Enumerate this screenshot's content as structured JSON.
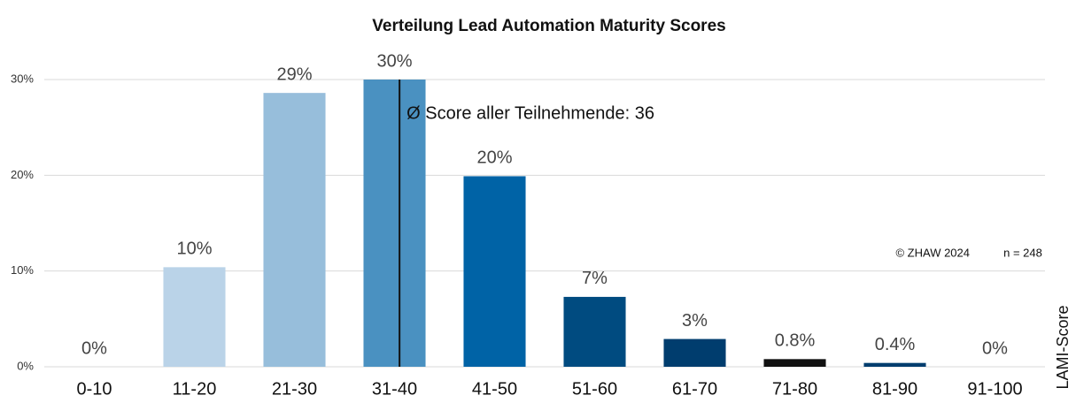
{
  "chart_data": {
    "type": "bar",
    "title": "Verteilung Lead Automation Maturity Scores",
    "categories": [
      "0-10",
      "11-20",
      "21-30",
      "31-40",
      "41-50",
      "51-60",
      "61-70",
      "71-80",
      "81-90",
      "91-100"
    ],
    "values": [
      0,
      10.4,
      28.6,
      30,
      19.9,
      7.3,
      2.9,
      0.8,
      0.4,
      0
    ],
    "value_labels": [
      "0%",
      "10%",
      "29%",
      "30%",
      "20%",
      "7%",
      "3%",
      "0.8%",
      "0.4%",
      "0%"
    ],
    "colors": [
      "#bdd7e7",
      "#bad3e8",
      "#97bedb",
      "#4a91c1",
      "#0063a6",
      "#004b80",
      "#003d6e",
      "#111111",
      "#003d6e",
      "#003d6e"
    ],
    "x_label": "LAMI-Score",
    "ylim": [
      0,
      30
    ],
    "yticks": [
      {
        "value": 0,
        "label": "0%"
      },
      {
        "value": 10,
        "label": "10%"
      },
      {
        "value": 20,
        "label": "20%"
      },
      {
        "value": 30,
        "label": "30%"
      }
    ],
    "grid": true,
    "annotation": {
      "text": "Ø Score aller Teilnehmende: 36",
      "value": 36
    },
    "copyright": "© ZHAW 2024",
    "sample": "n = 248"
  }
}
